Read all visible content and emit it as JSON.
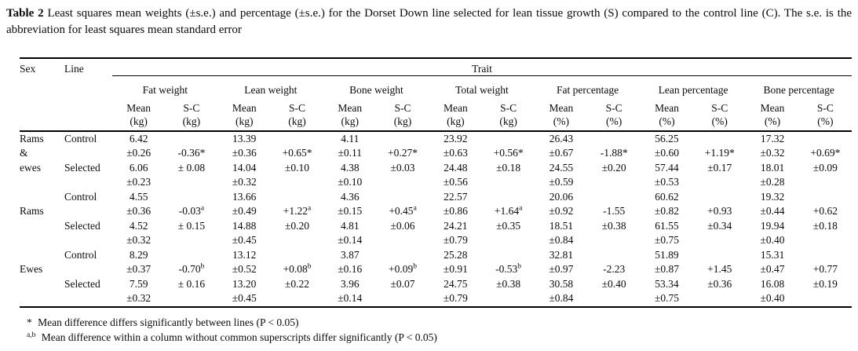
{
  "caption": {
    "label": "Table 2",
    "text": "Least squares mean weights (±s.e.) and percentage (±s.e.) for the Dorset Down line selected for lean tissue growth (S) compared to the control line (C). The s.e. is the abbreviation for least squares mean standard error"
  },
  "table": {
    "col_sex": "Sex",
    "col_line": "Line",
    "col_trait": "Trait",
    "trait_groups": [
      "Fat weight",
      "Lean weight",
      "Bone weight",
      "Total weight",
      "Fat percentage",
      "Lean percentage",
      "Bone percentage"
    ],
    "sub_mean": "Mean",
    "sub_sc": "S-C",
    "units": [
      "(kg)",
      "(kg)",
      "(kg)",
      "(kg)",
      "(%)",
      "(%)",
      "(%)"
    ],
    "groups": [
      {
        "sex_lines": [
          "Rams",
          "&",
          "ewes",
          ""
        ],
        "control_label": "Control",
        "selected_label": "Selected",
        "control_mean": [
          "6.42",
          "13.39",
          "4.11",
          "23.92",
          "26.43",
          "56.25",
          "17.32"
        ],
        "control_se": [
          "±0.26",
          "±0.36",
          "±0.11",
          "±0.63",
          "±0.67",
          "±0.60",
          "±0.32"
        ],
        "sc_diff": [
          "-0.36*",
          "+0.65*",
          "+0.27*",
          "+0.56*",
          "-1.88*",
          "+1.19*",
          "+0.69*"
        ],
        "sc_se": [
          "± 0.08",
          "±0.10",
          "±0.03",
          "±0.18",
          "±0.20",
          "±0.17",
          "±0.09"
        ],
        "selected_mean": [
          "6.06",
          "14.04",
          "4.38",
          "24.48",
          "24.55",
          "57.44",
          "18.01"
        ],
        "selected_se": [
          "±0.23",
          "±0.32",
          "±0.10",
          "±0.56",
          "±0.59",
          "±0.53",
          "±0.28"
        ]
      },
      {
        "sex_lines": [
          "",
          "Rams",
          "",
          ""
        ],
        "control_label": "Control",
        "selected_label": "Selected",
        "control_mean": [
          "4.55",
          "13.66",
          "4.36",
          "22.57",
          "20.06",
          "60.62",
          "19.32"
        ],
        "control_se": [
          "±0.36",
          "±0.49",
          "±0.15",
          "±0.86",
          "±0.92",
          "±0.82",
          "±0.44"
        ],
        "sc_diff": [
          "-0.03^a",
          "+1.22^a",
          "+0.45^a",
          "+1.64^a",
          "-1.55",
          "+0.93",
          "+0.62"
        ],
        "sc_se": [
          "± 0.15",
          "±0.20",
          "±0.06",
          "±0.35",
          "±0.38",
          "±0.34",
          "±0.18"
        ],
        "selected_mean": [
          "4.52",
          "14.88",
          "4.81",
          "24.21",
          "18.51",
          "61.55",
          "19.94"
        ],
        "selected_se": [
          "±0.32",
          "±0.45",
          "±0.14",
          "±0.79",
          "±0.84",
          "±0.75",
          "±0.40"
        ]
      },
      {
        "sex_lines": [
          "",
          "Ewes",
          "",
          ""
        ],
        "control_label": "Control",
        "selected_label": "Selected",
        "control_mean": [
          "8.29",
          "13.12",
          "3.87",
          "25.28",
          "32.81",
          "51.89",
          "15.31"
        ],
        "control_se": [
          "±0.37",
          "±0.52",
          "±0.16",
          "±0.91",
          "±0.97",
          "±0.87",
          "±0.47"
        ],
        "sc_diff": [
          "-0.70^b",
          "+0.08^b",
          "+0.09^b",
          "-0.53^b",
          "-2.23",
          "+1.45",
          "+0.77"
        ],
        "sc_se": [
          "± 0.16",
          "±0.22",
          "±0.07",
          "±0.38",
          "±0.40",
          "±0.36",
          "±0.19"
        ],
        "selected_mean": [
          "7.59",
          "13.20",
          "3.96",
          "24.75",
          "30.58",
          "53.34",
          "16.08"
        ],
        "selected_se": [
          "±0.32",
          "±0.45",
          "±0.14",
          "±0.79",
          "±0.84",
          "±0.75",
          "±0.40"
        ]
      }
    ]
  },
  "footnotes": [
    {
      "marker": "*",
      "superscript": false,
      "text": "Mean difference differs significantly between lines (P < 0.05)"
    },
    {
      "marker": "a,b",
      "superscript": true,
      "text": "Mean difference within a column  without common superscripts differ significantly (P < 0.05)"
    }
  ]
}
